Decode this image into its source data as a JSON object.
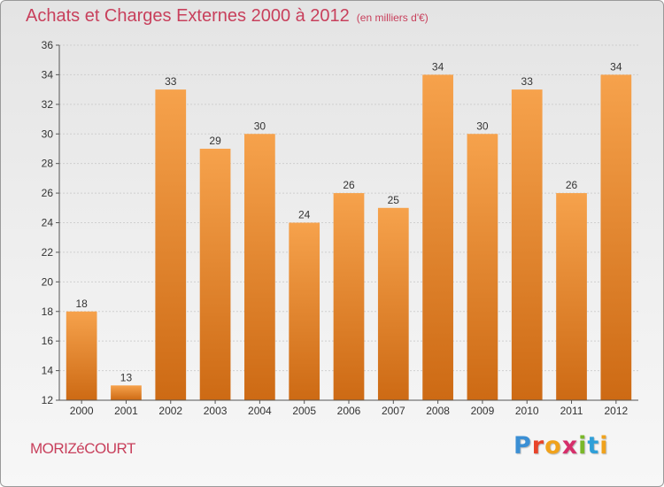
{
  "header": {
    "title": "Achats et Charges Externes 2000 à 2012",
    "subtitle": "(en milliers d'€)"
  },
  "footer": {
    "commune": "MORIZéCOURT",
    "logo": "Proxiti",
    "logo_colors": [
      "#3b8fd4",
      "#e8432a",
      "#f0a21c",
      "#d62e6a",
      "#7ab829",
      "#2f9fd8",
      "#f0a21c"
    ]
  },
  "colors": {
    "bar_top": "#f6a24c",
    "bar_bottom": "#cd6a14",
    "axis": "#555555",
    "grid": "#cfcfcf",
    "label": "#333333",
    "title": "#c8405c"
  },
  "chart_data": {
    "type": "bar",
    "categories": [
      "2000",
      "2001",
      "2002",
      "2003",
      "2004",
      "2005",
      "2006",
      "2007",
      "2008",
      "2009",
      "2010",
      "2011",
      "2012"
    ],
    "values": [
      18,
      13,
      33,
      29,
      30,
      24,
      26,
      25,
      34,
      30,
      33,
      26,
      34
    ],
    "title": "Achats et Charges Externes 2000 à 2012",
    "subtitle": "(en milliers d'€)",
    "ylim": [
      12,
      36
    ],
    "yticks": [
      12,
      14,
      16,
      18,
      20,
      22,
      24,
      26,
      28,
      30,
      32,
      34,
      36
    ],
    "grid": true,
    "data_labels": true
  }
}
